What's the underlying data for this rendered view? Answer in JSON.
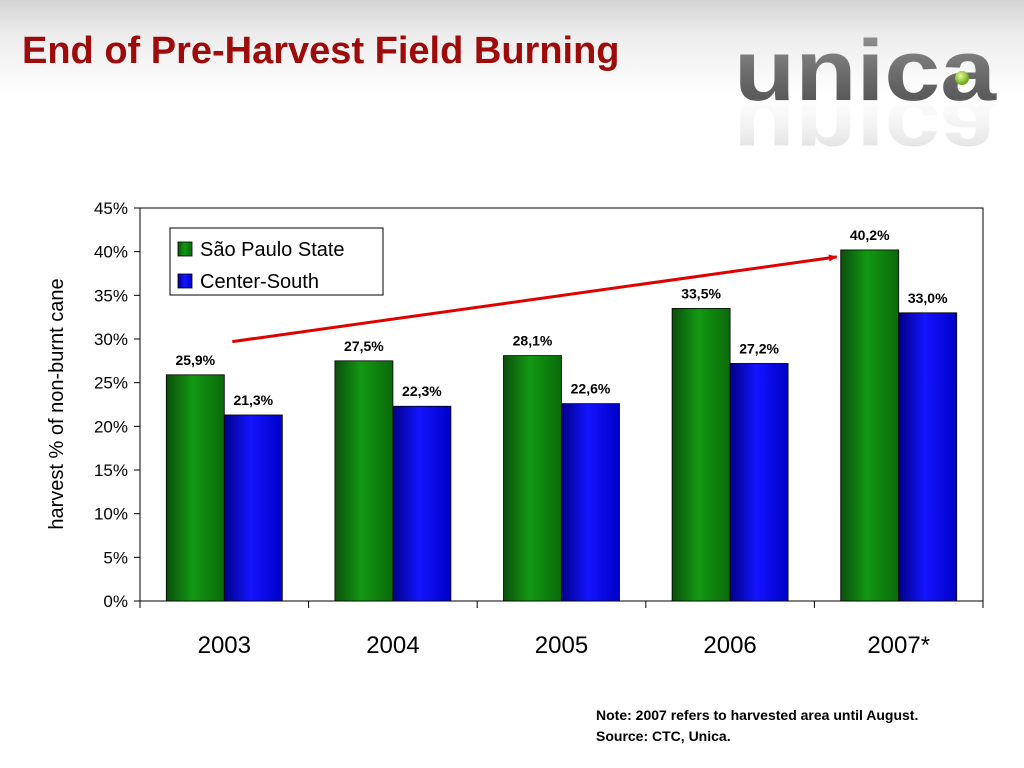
{
  "slide": {
    "title": "End of Pre-Harvest Field Burning",
    "logo_text": "unica",
    "note_line1": "Note: 2007 refers to harvested area until August.",
    "note_line2": "Source: CTC, Unica."
  },
  "colors": {
    "title": "#9e0b0b",
    "series_sp": "#0a7a0a",
    "series_cs": "#0000e0",
    "arrow": "#e00000"
  },
  "chart_data": {
    "type": "bar",
    "title": "",
    "xlabel": "",
    "ylabel": "harvest % of non-burnt cane",
    "categories": [
      "2003",
      "2004",
      "2005",
      "2006",
      "2007*"
    ],
    "series": [
      {
        "name": "São Paulo State",
        "values": [
          25.9,
          27.5,
          28.1,
          33.5,
          40.2
        ],
        "labels": [
          "25,9%",
          "27,5%",
          "28,1%",
          "33,5%",
          "40,2%"
        ]
      },
      {
        "name": "Center-South",
        "values": [
          21.3,
          22.3,
          22.6,
          27.2,
          33.0
        ],
        "labels": [
          "21,3%",
          "22,3%",
          "22,6%",
          "27,2%",
          "33,0%"
        ]
      }
    ],
    "ylim": [
      0,
      45
    ],
    "yticks": [
      0,
      5,
      10,
      15,
      20,
      25,
      30,
      35,
      40,
      45
    ],
    "ytick_labels": [
      "0%",
      "5%",
      "10%",
      "15%",
      "20%",
      "25%",
      "30%",
      "35%",
      "40%",
      "45%"
    ],
    "grid": false,
    "legend_position": "top-left",
    "annotations": [
      {
        "type": "trend-arrow",
        "from_category": "2003",
        "to_category": "2007*"
      }
    ]
  }
}
